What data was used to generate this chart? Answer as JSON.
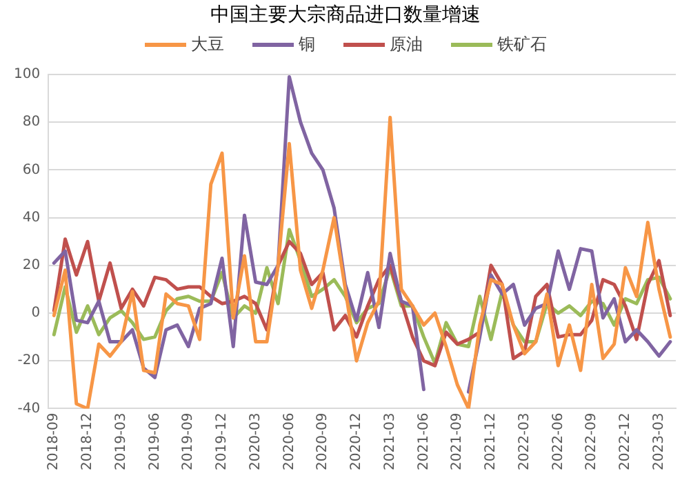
{
  "chart_data": {
    "type": "line",
    "title": "中国主要大宗商品进口数量增速",
    "categories": [
      "2018-09",
      null,
      null,
      "2018-12",
      null,
      null,
      "2019-03",
      null,
      null,
      "2019-06",
      null,
      null,
      "2019-09",
      null,
      null,
      "2019-12",
      null,
      null,
      "2020-03",
      null,
      null,
      "2020-06",
      null,
      null,
      "2020-09",
      null,
      null,
      "2020-12",
      null,
      null,
      "2021-03",
      null,
      null,
      "2021-06",
      null,
      null,
      "2021-09",
      null,
      null,
      "2021-12",
      null,
      null,
      "2022-03",
      null,
      null,
      "2022-06",
      null,
      null,
      "2022-09",
      null,
      null,
      "2022-12",
      null,
      null,
      "2023-03",
      null
    ],
    "series": [
      {
        "name": "大豆",
        "color": "#f79646",
        "values": [
          -1,
          18,
          -38,
          -40,
          -13,
          -18,
          -12,
          9,
          -24,
          -25,
          8,
          4,
          3,
          -11,
          54,
          67,
          -2,
          24,
          -12,
          -12,
          20,
          71,
          18,
          2,
          18,
          40,
          10,
          -20,
          -4,
          5,
          82,
          10,
          3,
          -5,
          0,
          -14,
          -30,
          -40,
          -5,
          14,
          12,
          -5,
          -17,
          -12,
          8,
          -22,
          -5,
          -24,
          12,
          -19,
          -13,
          19,
          7,
          38,
          10,
          -10
        ]
      },
      {
        "name": "铜",
        "color": "#8064a2",
        "values": [
          21,
          26,
          -3,
          -4,
          5,
          -12,
          -12,
          -7,
          -23,
          -27,
          -7,
          -5,
          -14,
          2,
          4,
          23,
          -14,
          41,
          13,
          12,
          20,
          99,
          80,
          67,
          60,
          44,
          12,
          -3,
          17,
          -6,
          25,
          5,
          3,
          -32,
          null,
          null,
          null,
          -33,
          -10,
          16,
          8,
          12,
          -5,
          2,
          4,
          26,
          10,
          27,
          26,
          -2,
          6,
          -12,
          -7,
          -12,
          -18,
          -12
        ]
      },
      {
        "name": "原油",
        "color": "#c0504d",
        "values": [
          1,
          31,
          16,
          30,
          5,
          21,
          2,
          10,
          3,
          15,
          14,
          10,
          11,
          11,
          7,
          4,
          5,
          7,
          4,
          -7,
          20,
          30,
          25,
          12,
          17,
          -7,
          -1,
          -10,
          3,
          14,
          20,
          5,
          -10,
          -20,
          -22,
          -8,
          -13,
          -11,
          -8,
          20,
          12,
          -19,
          -16,
          7,
          12,
          -10,
          -9,
          -9,
          -3,
          14,
          12,
          3,
          -11,
          12,
          22,
          -1
        ]
      },
      {
        "name": "铁矿石",
        "color": "#9bbb59",
        "values": [
          -9,
          11,
          -8,
          3,
          -9,
          -2,
          1,
          -4,
          -11,
          -10,
          1,
          6,
          7,
          5,
          5,
          17,
          -2,
          3,
          0,
          19,
          4,
          35,
          22,
          7,
          10,
          14,
          7,
          -4,
          2,
          4,
          19,
          3,
          3,
          -10,
          -21,
          -4,
          -13,
          -14,
          7,
          -11,
          9,
          -5,
          -12,
          -12,
          4,
          0,
          3,
          -1,
          5,
          4,
          -5,
          6,
          4,
          14,
          15,
          6
        ]
      }
    ],
    "ylim": [
      -40,
      100
    ],
    "yticks": [
      -40,
      -20,
      0,
      20,
      40,
      60,
      80,
      100
    ],
    "grid": "y",
    "legend": "top",
    "marker": "none",
    "line_style": "solid"
  }
}
